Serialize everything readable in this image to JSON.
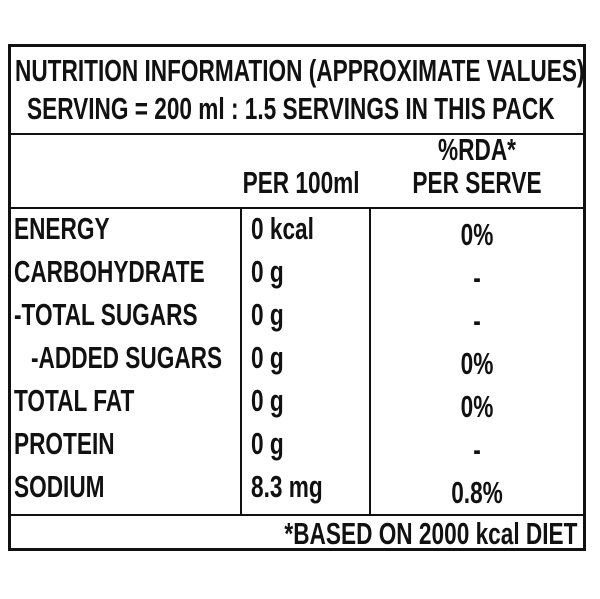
{
  "label": {
    "title": "NUTRITION INFORMATION (APPROXIMATE VALUES)",
    "serving": "SERVING = 200 ml : 1.5 SERVINGS IN THIS PACK",
    "columns": {
      "per_100ml": "PER 100ml",
      "rda_line1": "%RDA*",
      "rda_line2": "PER SERVE"
    },
    "rows": [
      {
        "name": "ENERGY",
        "value": "0 kcal",
        "rda": "0%"
      },
      {
        "name": "CARBOHYDRATE",
        "value": "0 g",
        "rda": "-"
      },
      {
        "name": "-TOTAL SUGARS",
        "value": "0 g",
        "rda": "-"
      },
      {
        "name": "-ADDED SUGARS",
        "value": "0 g",
        "rda": "0%"
      },
      {
        "name": "TOTAL FAT",
        "value": "0 g",
        "rda": "0%"
      },
      {
        "name": "PROTEIN",
        "value": "0 g",
        "rda": "-"
      },
      {
        "name": "SODIUM",
        "value": "8.3 mg",
        "rda": "0.8%"
      }
    ],
    "footnote": "*BASED ON 2000 kcal DIET"
  }
}
